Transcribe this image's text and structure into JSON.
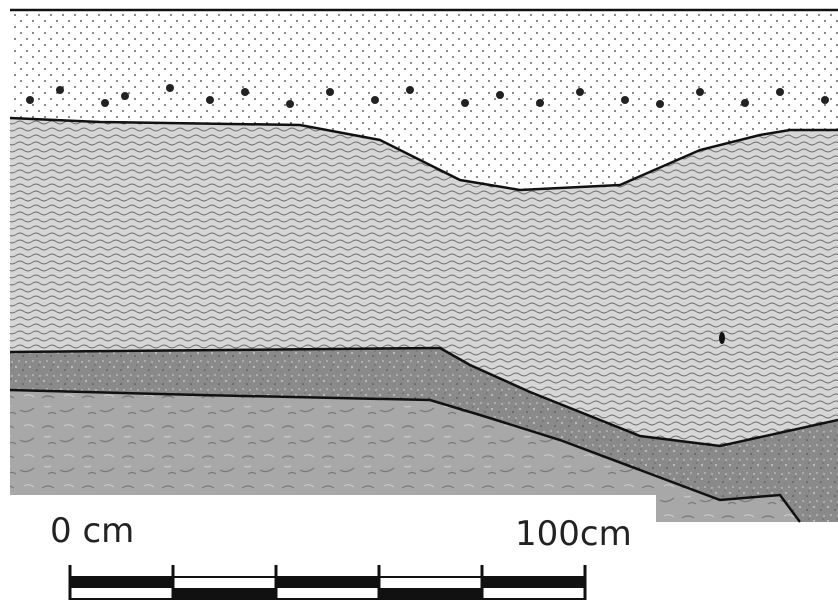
{
  "scale_bar": {
    "start_label": "0 cm",
    "end_label": "100cm"
  }
}
